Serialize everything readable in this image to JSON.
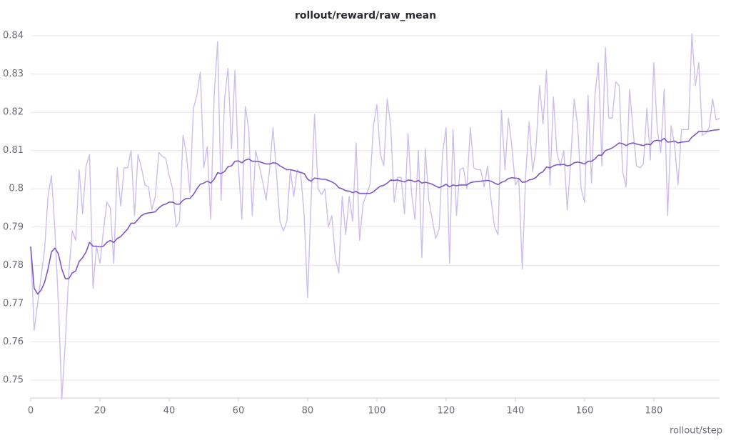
{
  "chart_data": {
    "type": "line",
    "title": "rollout/reward/raw_mean",
    "x_label": "rollout/step",
    "x": [
      0,
      1,
      2,
      3,
      4,
      5,
      6,
      7,
      8,
      9,
      10,
      11,
      12,
      13,
      14,
      15,
      16,
      17,
      18,
      19,
      20,
      21,
      22,
      23,
      24,
      25,
      26,
      27,
      28,
      29,
      30,
      31,
      32,
      33,
      34,
      35,
      36,
      37,
      38,
      39,
      40,
      41,
      42,
      43,
      44,
      45,
      46,
      47,
      48,
      49,
      50,
      51,
      52,
      53,
      54,
      55,
      56,
      57,
      58,
      59,
      60,
      61,
      62,
      63,
      64,
      65,
      66,
      67,
      68,
      69,
      70,
      71,
      72,
      73,
      74,
      75,
      76,
      77,
      78,
      79,
      80,
      81,
      82,
      83,
      84,
      85,
      86,
      87,
      88,
      89,
      90,
      91,
      92,
      93,
      94,
      95,
      96,
      97,
      98,
      99,
      100,
      101,
      102,
      103,
      104,
      105,
      106,
      107,
      108,
      109,
      110,
      111,
      112,
      113,
      114,
      115,
      116,
      117,
      118,
      119,
      120,
      121,
      122,
      123,
      124,
      125,
      126,
      127,
      128,
      129,
      130,
      131,
      132,
      133,
      134,
      135,
      136,
      137,
      138,
      139,
      140,
      141,
      142,
      143,
      144,
      145,
      146,
      147,
      148,
      149,
      150,
      151,
      152,
      153,
      154,
      155,
      156,
      157,
      158,
      159,
      160,
      161,
      162,
      163,
      164,
      165,
      166,
      167,
      168,
      169,
      170,
      171,
      172,
      173,
      174,
      175,
      176,
      177,
      178,
      179,
      180,
      181,
      182,
      183,
      184,
      185,
      186,
      187,
      188,
      189,
      190,
      191,
      192,
      193,
      194,
      195,
      196,
      197,
      198,
      199
    ],
    "series": [
      {
        "color": "#cdbdec",
        "values": [
          0.785,
          0.763,
          0.77,
          0.777,
          0.784,
          0.798,
          0.8035,
          0.789,
          0.77,
          0.745,
          0.76,
          0.778,
          0.789,
          0.7865,
          0.805,
          0.7935,
          0.806,
          0.809,
          0.774,
          0.785,
          0.7805,
          0.789,
          0.7965,
          0.795,
          0.7805,
          0.8055,
          0.7955,
          0.8055,
          0.8055,
          0.81,
          0.793,
          0.809,
          0.8055,
          0.801,
          0.8005,
          0.7945,
          0.798,
          0.8095,
          0.8085,
          0.808,
          0.8035,
          0.8,
          0.79,
          0.7915,
          0.814,
          0.809,
          0.799,
          0.821,
          0.8245,
          0.8305,
          0.8055,
          0.811,
          0.792,
          0.8245,
          0.8385,
          0.797,
          0.8235,
          0.8315,
          0.8105,
          0.831,
          0.806,
          0.792,
          0.8215,
          0.8155,
          0.793,
          0.81,
          0.806,
          0.802,
          0.797,
          0.805,
          0.816,
          0.804,
          0.7915,
          0.789,
          0.7915,
          0.805,
          0.798,
          0.805,
          0.804,
          0.793,
          0.7715,
          0.797,
          0.8195,
          0.8,
          0.7985,
          0.8,
          0.79,
          0.793,
          0.782,
          0.778,
          0.798,
          0.788,
          0.798,
          0.7915,
          0.812,
          0.7865,
          0.796,
          0.7985,
          0.801,
          0.8165,
          0.822,
          0.809,
          0.806,
          0.8235,
          0.8165,
          0.7965,
          0.803,
          0.803,
          0.7935,
          0.8145,
          0.799,
          0.792,
          0.81,
          0.782,
          0.8105,
          0.797,
          0.792,
          0.787,
          0.7895,
          0.8095,
          0.816,
          0.7805,
          0.8155,
          0.793,
          0.805,
          0.8055,
          0.8,
          0.816,
          0.8055,
          0.805,
          0.805,
          0.8005,
          0.806,
          0.797,
          0.79,
          0.788,
          0.8205,
          0.805,
          0.8185,
          0.811,
          0.801,
          0.8025,
          0.779,
          0.804,
          0.8175,
          0.8045,
          0.811,
          0.827,
          0.817,
          0.831,
          0.801,
          0.824,
          0.8095,
          0.806,
          0.81,
          0.7945,
          0.8075,
          0.8235,
          0.8165,
          0.8,
          0.7965,
          0.8245,
          0.8015,
          0.8245,
          0.833,
          0.806,
          0.837,
          0.8185,
          0.8185,
          0.828,
          0.827,
          0.8045,
          0.8005,
          0.826,
          0.8155,
          0.806,
          0.8055,
          0.8065,
          0.821,
          0.8075,
          0.833,
          0.8155,
          0.8095,
          0.826,
          0.793,
          0.8165,
          0.8115,
          0.801,
          0.8155,
          0.8155,
          0.8155,
          0.8405,
          0.827,
          0.833,
          0.814,
          0.8145,
          0.816,
          0.8235,
          0.818,
          0.8185
        ]
      },
      {
        "color": "#7e57c2",
        "values": [
          0.7848,
          0.774,
          0.7725,
          0.7735,
          0.7755,
          0.779,
          0.7835,
          0.7845,
          0.783,
          0.779,
          0.7765,
          0.7765,
          0.778,
          0.7785,
          0.781,
          0.782,
          0.7835,
          0.786,
          0.785,
          0.785,
          0.7848,
          0.785,
          0.786,
          0.7865,
          0.786,
          0.787,
          0.7875,
          0.7885,
          0.7895,
          0.791,
          0.791,
          0.792,
          0.793,
          0.7935,
          0.7937,
          0.7938,
          0.794,
          0.795,
          0.7957,
          0.796,
          0.7965,
          0.7965,
          0.796,
          0.796,
          0.797,
          0.7975,
          0.7975,
          0.7985,
          0.8,
          0.8012,
          0.8015,
          0.802,
          0.8015,
          0.8025,
          0.8042,
          0.804,
          0.8045,
          0.8058,
          0.806,
          0.8072,
          0.8073,
          0.8068,
          0.8075,
          0.8078,
          0.8072,
          0.8072,
          0.8071,
          0.8068,
          0.8065,
          0.8065,
          0.8068,
          0.8067,
          0.806,
          0.8055,
          0.805,
          0.805,
          0.8048,
          0.8045,
          0.8043,
          0.804,
          0.8025,
          0.802,
          0.8028,
          0.8027,
          0.8025,
          0.8025,
          0.8022,
          0.8018,
          0.8013,
          0.8003,
          0.8,
          0.7995,
          0.7994,
          0.799,
          0.7993,
          0.7988,
          0.7988,
          0.7988,
          0.7988,
          0.7992,
          0.8,
          0.8007,
          0.8009,
          0.8015,
          0.8023,
          0.8022,
          0.8023,
          0.802,
          0.8018,
          0.8023,
          0.8022,
          0.8018,
          0.8022,
          0.8015,
          0.8017,
          0.8015,
          0.8012,
          0.8007,
          0.8003,
          0.8007,
          0.8012,
          0.8005,
          0.801,
          0.8008,
          0.801,
          0.801,
          0.801,
          0.8016,
          0.8018,
          0.8019,
          0.802,
          0.8021,
          0.8022,
          0.802,
          0.8015,
          0.8011,
          0.8017,
          0.802,
          0.8027,
          0.8029,
          0.8028,
          0.8027,
          0.8017,
          0.8018,
          0.8023,
          0.8025,
          0.803,
          0.804,
          0.8045,
          0.8057,
          0.8055,
          0.806,
          0.8063,
          0.8063,
          0.8064,
          0.806,
          0.8062,
          0.8068,
          0.807,
          0.8068,
          0.8065,
          0.8072,
          0.8072,
          0.8078,
          0.8088,
          0.8088,
          0.81,
          0.8103,
          0.8107,
          0.8113,
          0.812,
          0.8118,
          0.8113,
          0.8118,
          0.812,
          0.8117,
          0.8115,
          0.8113,
          0.8117,
          0.8115,
          0.8125,
          0.8127,
          0.8125,
          0.8132,
          0.8122,
          0.8123,
          0.8125,
          0.812,
          0.8122,
          0.8123,
          0.8124,
          0.8135,
          0.8142,
          0.815,
          0.815,
          0.815,
          0.8151,
          0.8153,
          0.8154,
          0.8155
        ]
      }
    ],
    "xlim": [
      0,
      199
    ],
    "xticks": [
      0,
      20,
      40,
      60,
      80,
      100,
      120,
      140,
      160,
      180
    ],
    "ylim": [
      0.7453,
      0.8419
    ],
    "yticks": [
      0.75,
      0.76,
      0.77,
      0.78,
      0.79,
      0.8,
      0.81,
      0.82,
      0.83,
      0.84
    ],
    "grid": true
  }
}
